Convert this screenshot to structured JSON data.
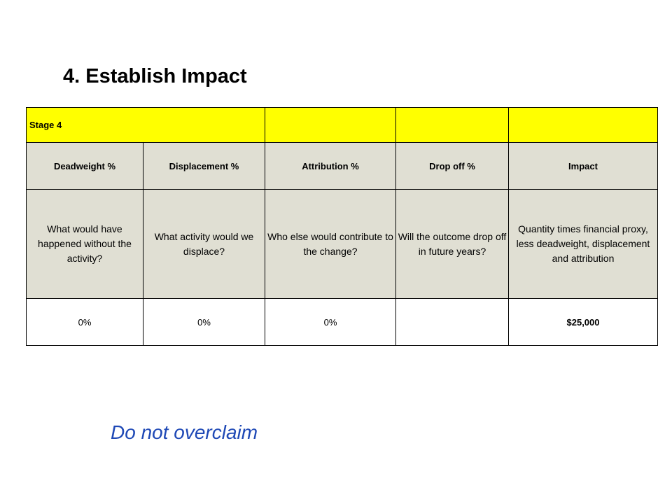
{
  "title": "4. Establish Impact",
  "table": {
    "stage_label": "Stage  4",
    "headers": [
      "Deadweight  %",
      "Displacement  %",
      "Attribution  %",
      "Drop off %",
      "Impact"
    ],
    "descriptions": [
      "What would have happened  without the activity?",
      "What activity would we displace?",
      "Who else would contribute to  the change?",
      "Will the outcome drop off in future years?",
      "Quantity times financial proxy, less deadweight, displacement and attribution"
    ],
    "values": [
      "0%",
      "0%",
      "0%",
      "",
      "$25,000"
    ]
  },
  "footer_note": "Do not overclaim",
  "colors": {
    "stage_row_bg": "#ffff00",
    "header_bg": "#e0dfd3",
    "footer_text": "#1f49b6"
  }
}
